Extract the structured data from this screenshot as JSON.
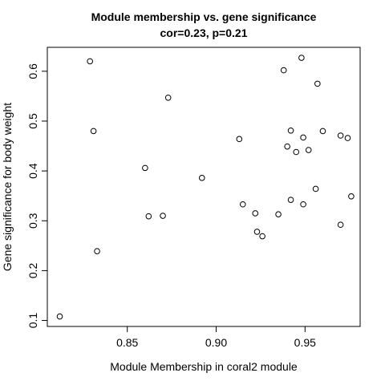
{
  "chart_data": {
    "type": "scatter",
    "title": "Module membership vs. gene significance",
    "subtitle": "cor=0.23, p=0.21",
    "xlabel": "Module Membership in coral2 module",
    "ylabel": "Gene significance for body weight",
    "xlim": [
      0.805,
      0.981
    ],
    "ylim": [
      0.088,
      0.648
    ],
    "xticks": [
      0.85,
      0.9,
      0.95
    ],
    "xtick_labels": [
      "0.85",
      "0.90",
      "0.95"
    ],
    "yticks": [
      0.1,
      0.2,
      0.3,
      0.4,
      0.5,
      0.6
    ],
    "ytick_labels": [
      "0.1",
      "0.2",
      "0.3",
      "0.4",
      "0.5",
      "0.6"
    ],
    "grid": false,
    "marker": "open-circle",
    "color": "#000000",
    "points": [
      {
        "x": 0.812,
        "y": 0.108
      },
      {
        "x": 0.829,
        "y": 0.62
      },
      {
        "x": 0.831,
        "y": 0.48
      },
      {
        "x": 0.833,
        "y": 0.239
      },
      {
        "x": 0.86,
        "y": 0.406
      },
      {
        "x": 0.862,
        "y": 0.309
      },
      {
        "x": 0.87,
        "y": 0.31
      },
      {
        "x": 0.873,
        "y": 0.547
      },
      {
        "x": 0.892,
        "y": 0.386
      },
      {
        "x": 0.913,
        "y": 0.464
      },
      {
        "x": 0.915,
        "y": 0.333
      },
      {
        "x": 0.922,
        "y": 0.315
      },
      {
        "x": 0.923,
        "y": 0.278
      },
      {
        "x": 0.926,
        "y": 0.269
      },
      {
        "x": 0.935,
        "y": 0.313
      },
      {
        "x": 0.938,
        "y": 0.602
      },
      {
        "x": 0.94,
        "y": 0.449
      },
      {
        "x": 0.942,
        "y": 0.481
      },
      {
        "x": 0.942,
        "y": 0.342
      },
      {
        "x": 0.945,
        "y": 0.438
      },
      {
        "x": 0.948,
        "y": 0.627
      },
      {
        "x": 0.949,
        "y": 0.467
      },
      {
        "x": 0.949,
        "y": 0.333
      },
      {
        "x": 0.952,
        "y": 0.442
      },
      {
        "x": 0.956,
        "y": 0.364
      },
      {
        "x": 0.957,
        "y": 0.575
      },
      {
        "x": 0.96,
        "y": 0.48
      },
      {
        "x": 0.97,
        "y": 0.471
      },
      {
        "x": 0.97,
        "y": 0.292
      },
      {
        "x": 0.974,
        "y": 0.466
      },
      {
        "x": 0.976,
        "y": 0.349
      }
    ]
  }
}
